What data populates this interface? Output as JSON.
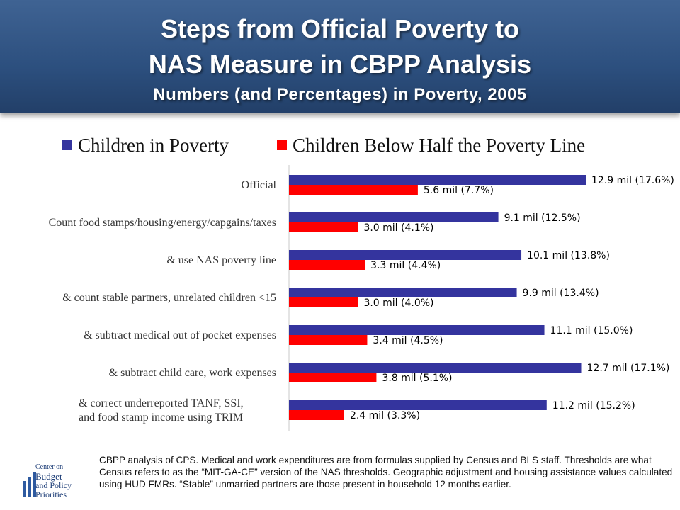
{
  "header": {
    "title_line1": "Steps from Official Poverty to",
    "title_line2": "NAS Measure in CBPP Analysis",
    "subtitle": "Numbers (and Percentages) in Poverty, 2005"
  },
  "chart_data": {
    "type": "bar",
    "orientation": "horizontal",
    "categories": [
      "Official",
      "Count food stamps/housing/energy/capgains/taxes",
      "& use NAS poverty line",
      "& count stable partners, unrelated children <15",
      "& subtract medical out of pocket expenses",
      "& subtract child care, work expenses",
      "& correct underreported TANF, SSI, and food stamp income using TRIM"
    ],
    "series": [
      {
        "name": "Children in Poverty",
        "color": "#34349e",
        "values": [
          12.9,
          9.1,
          10.1,
          9.9,
          11.1,
          12.7,
          11.2
        ],
        "labels": [
          "12.9 mil (17.6%)",
          "9.1 mil (12.5%)",
          "10.1 mil (13.8%)",
          "9.9 mil (13.4%)",
          "11.1 mil (15.0%)",
          "12.7 mil (17.1%)",
          "11.2 mil (15.2%)"
        ]
      },
      {
        "name": "Children Below Half the Poverty Line",
        "color": "#ff0000",
        "values": [
          5.6,
          3.0,
          3.3,
          3.0,
          3.4,
          3.8,
          2.4
        ],
        "labels": [
          "5.6 mil (7.7%)",
          "3.0 mil (4.1%)",
          "3.3 mil (4.4%)",
          "3.0 mil (4.0%)",
          "3.4 mil (4.5%)",
          "3.8 mil (5.1%)",
          "2.4 mil (3.3%)"
        ]
      }
    ],
    "xlim": [
      0,
      12.9
    ],
    "grid": false,
    "legend": "top"
  },
  "footnote": "CBPP analysis of CPS. Medical and work expenditures are from formulas supplied by Census and BLS staff. Thresholds are what Census refers to as the “MIT-GA-CE” version of the NAS thresholds. Geographic adjustment and housing assistance values calculated using HUD FMRs. “Stable” unmarried partners are those present in household 12 months earlier.",
  "logo": {
    "line1": "Center on",
    "line2": "Budget",
    "line3": "and Policy",
    "line4": "Priorities"
  }
}
